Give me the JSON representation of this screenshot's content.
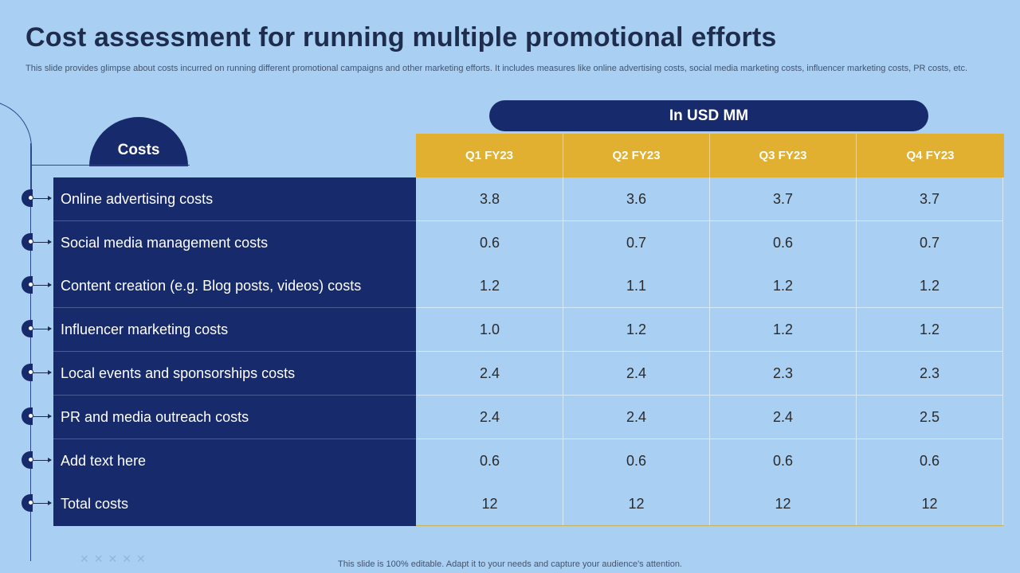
{
  "title": "Cost assessment for running multiple promotional efforts",
  "subtitle": "This slide provides glimpse about costs incurred on running different promotional campaigns and other marketing efforts. It includes measures like online advertising costs, social media marketing costs, influencer marketing costs, PR costs, etc.",
  "unit_label": "In USD MM",
  "costs_label": "Costs",
  "quarters": [
    "Q1 FY23",
    "Q2 FY23",
    "Q3 FY23",
    "Q4 FY23"
  ],
  "rows": [
    {
      "label": "Online advertising costs",
      "values": [
        "3.8",
        "3.6",
        "3.7",
        "3.7"
      ]
    },
    {
      "label": "Social media management costs",
      "values": [
        "0.6",
        "0.7",
        "0.6",
        "0.7"
      ]
    },
    {
      "label": "Content creation (e.g. Blog posts, videos) costs",
      "values": [
        "1.2",
        "1.1",
        "1.2",
        "1.2"
      ]
    },
    {
      "label": "Influencer marketing costs",
      "values": [
        "1.0",
        "1.2",
        "1.2",
        "1.2"
      ]
    },
    {
      "label": "Local events and sponsorships costs",
      "values": [
        "2.4",
        "2.4",
        "2.3",
        "2.3"
      ]
    },
    {
      "label": "PR and media outreach costs",
      "values": [
        "2.4",
        "2.4",
        "2.4",
        "2.5"
      ]
    },
    {
      "label": "Add text here",
      "values": [
        "0.6",
        "0.6",
        "0.6",
        "0.6"
      ]
    },
    {
      "label": "Total costs",
      "values": [
        "12",
        "12",
        "12",
        "12"
      ]
    }
  ],
  "footer": "This slide is 100% editable. Adapt it to your needs and capture your audience's attention.",
  "colors": {
    "background": "#a9cff3",
    "navy": "#172a6b",
    "gold": "#e1b030",
    "title": "#1e2d4d"
  }
}
